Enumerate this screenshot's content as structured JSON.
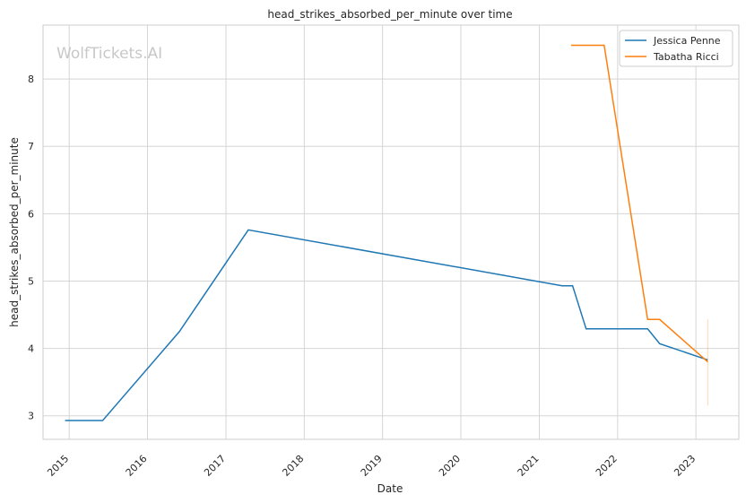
{
  "chart_data": {
    "type": "line",
    "title": "head_strikes_absorbed_per_minute over time",
    "xlabel": "Date",
    "ylabel": "head_strikes_absorbed_per_minute",
    "watermark": "WolfTickets.AI",
    "x_ticks": [
      "2015",
      "2016",
      "2017",
      "2018",
      "2019",
      "2020",
      "2021",
      "2022",
      "2023"
    ],
    "y_ticks": [
      "3",
      "4",
      "5",
      "6",
      "7",
      "8"
    ],
    "xlim": [
      "2014-09-01",
      "2023-07-20"
    ],
    "ylim": [
      2.65,
      8.8
    ],
    "grid": true,
    "legend_position": "top-right",
    "series": [
      {
        "name": "Jessica Penne",
        "color": "#1f77b4",
        "points": [
          [
            "2014-12-13",
            2.93
          ],
          [
            "2015-06-06",
            2.93
          ],
          [
            "2016-05-29",
            4.25
          ],
          [
            "2017-04-15",
            5.76
          ],
          [
            "2021-04-17",
            4.93
          ],
          [
            "2021-06-05",
            4.93
          ],
          [
            "2021-08-07",
            4.29
          ],
          [
            "2022-05-21",
            4.29
          ],
          [
            "2022-07-16",
            4.07
          ],
          [
            "2023-02-25",
            3.83
          ]
        ]
      },
      {
        "name": "Tabatha Ricci",
        "color": "#ff7f0e",
        "points": [
          [
            "2021-05-29",
            8.5
          ],
          [
            "2021-10-30",
            8.5
          ],
          [
            "2022-05-21",
            4.43
          ],
          [
            "2022-07-16",
            4.43
          ],
          [
            "2023-02-25",
            3.8
          ]
        ],
        "error_bar": {
          "x": "2023-02-25",
          "low": 3.15,
          "high": 4.43
        }
      }
    ]
  }
}
